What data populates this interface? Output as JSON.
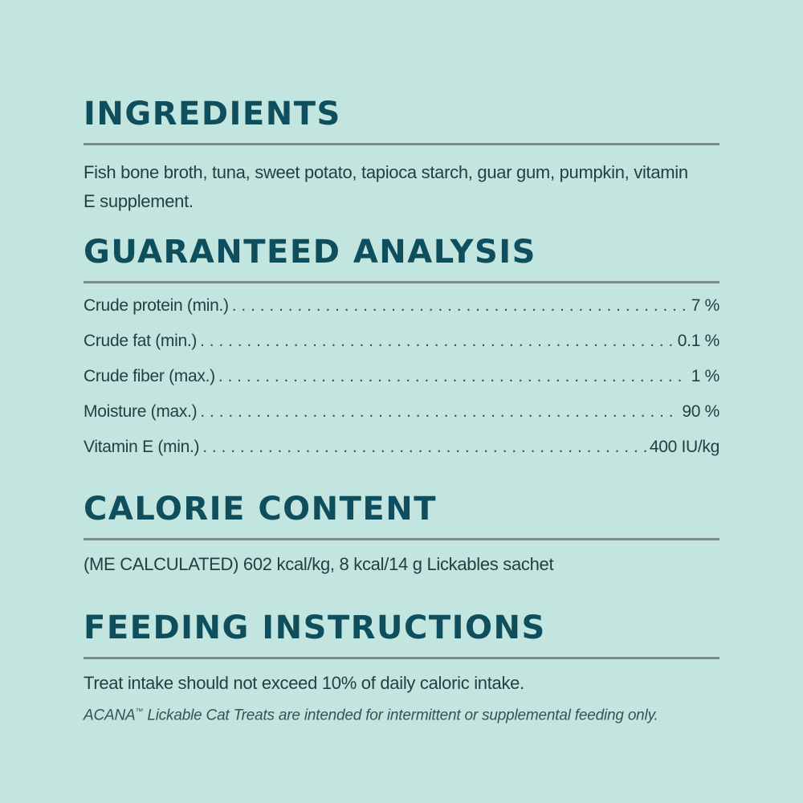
{
  "ingredients": {
    "heading": "INGREDIENTS",
    "text": "Fish bone broth, tuna, sweet potato, tapioca starch, guar gum, pumpkin, vitamin E supplement."
  },
  "analysis": {
    "heading": "GUARANTEED ANALYSIS",
    "rows": [
      {
        "label": "Crude protein (min.)",
        "value": "7 %"
      },
      {
        "label": "Crude fat (min.)",
        "value": "0.1 %"
      },
      {
        "label": "Crude fiber (max.)",
        "value": "1 %"
      },
      {
        "label": "Moisture (max.)",
        "value": "90 %"
      },
      {
        "label": "Vitamin E (min.)",
        "value": "400 IU/kg"
      }
    ]
  },
  "calorie": {
    "heading": "CALORIE CONTENT",
    "text": "(ME CALCULATED) 602 kcal/kg, 8 kcal/14 g Lickables sachet"
  },
  "feeding": {
    "heading": "FEEDING INSTRUCTIONS",
    "text": "Treat intake should not exceed 10% of daily caloric intake.",
    "note_brand": "ACANA",
    "note_tm": "™",
    "note_rest": " Lickable Cat Treats are intended for intermittent or supplemental feeding only."
  },
  "colors": {
    "background": "#c3e5df",
    "heading": "#0f4e5c",
    "rule": "#7b8a8f",
    "text": "#263d46"
  }
}
